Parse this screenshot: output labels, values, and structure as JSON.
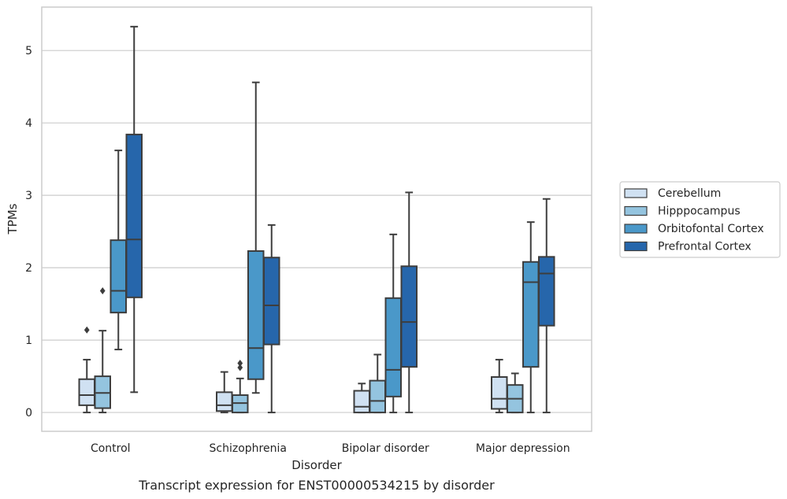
{
  "chart_data": {
    "type": "box",
    "title": "",
    "caption": "Transcript expression for ENST00000534215 by disorder",
    "xlabel": "Disorder",
    "ylabel": "TPMs",
    "ylim": [
      -0.26,
      5.6
    ],
    "yticks": [
      0,
      1,
      2,
      3,
      4,
      5
    ],
    "grid": "horizontal",
    "legend_position": "right",
    "categories": [
      "Control",
      "Schizophrenia",
      "Bipolar disorder",
      "Major depression"
    ],
    "series": [
      {
        "name": "Cerebellum",
        "color": "#d0e1f2",
        "boxes": [
          {
            "min": 0.0,
            "q1": 0.1,
            "median": 0.24,
            "q3": 0.46,
            "max": 0.73,
            "outliers": [
              1.14
            ]
          },
          {
            "min": 0.0,
            "q1": 0.02,
            "median": 0.1,
            "q3": 0.28,
            "max": 0.56,
            "outliers": []
          },
          {
            "min": 0.0,
            "q1": 0.0,
            "median": 0.08,
            "q3": 0.3,
            "max": 0.4,
            "outliers": []
          },
          {
            "min": 0.0,
            "q1": 0.05,
            "median": 0.19,
            "q3": 0.49,
            "max": 0.73,
            "outliers": []
          }
        ]
      },
      {
        "name": "Hipppocampus",
        "color": "#94c4df",
        "boxes": [
          {
            "min": 0.0,
            "q1": 0.06,
            "median": 0.27,
            "q3": 0.5,
            "max": 1.13,
            "outliers": [
              1.68
            ]
          },
          {
            "min": 0.0,
            "q1": 0.0,
            "median": 0.13,
            "q3": 0.24,
            "max": 0.47,
            "outliers": [
              0.62,
              0.68
            ]
          },
          {
            "min": 0.0,
            "q1": 0.0,
            "median": 0.16,
            "q3": 0.44,
            "max": 0.8,
            "outliers": []
          },
          {
            "min": 0.0,
            "q1": 0.0,
            "median": 0.19,
            "q3": 0.38,
            "max": 0.54,
            "outliers": []
          }
        ]
      },
      {
        "name": "Orbitofontal Cortex",
        "color": "#4a98c9",
        "boxes": [
          {
            "min": 0.87,
            "q1": 1.38,
            "median": 1.68,
            "q3": 2.38,
            "max": 3.62,
            "outliers": []
          },
          {
            "min": 0.27,
            "q1": 0.46,
            "median": 0.89,
            "q3": 2.23,
            "max": 4.56,
            "outliers": []
          },
          {
            "min": 0.0,
            "q1": 0.22,
            "median": 0.59,
            "q3": 1.58,
            "max": 2.46,
            "outliers": []
          },
          {
            "min": 0.0,
            "q1": 0.63,
            "median": 1.8,
            "q3": 2.08,
            "max": 2.63,
            "outliers": []
          }
        ]
      },
      {
        "name": "Prefrontal Cortex",
        "color": "#2666ab",
        "boxes": [
          {
            "min": 0.28,
            "q1": 1.59,
            "median": 2.39,
            "q3": 3.84,
            "max": 5.33,
            "outliers": []
          },
          {
            "min": 0.0,
            "q1": 0.94,
            "median": 1.48,
            "q3": 2.14,
            "max": 2.59,
            "outliers": []
          },
          {
            "min": 0.0,
            "q1": 0.63,
            "median": 1.25,
            "q3": 2.02,
            "max": 3.04,
            "outliers": []
          },
          {
            "min": 0.0,
            "q1": 1.2,
            "median": 1.92,
            "q3": 2.15,
            "max": 2.95,
            "outliers": []
          }
        ]
      }
    ]
  }
}
